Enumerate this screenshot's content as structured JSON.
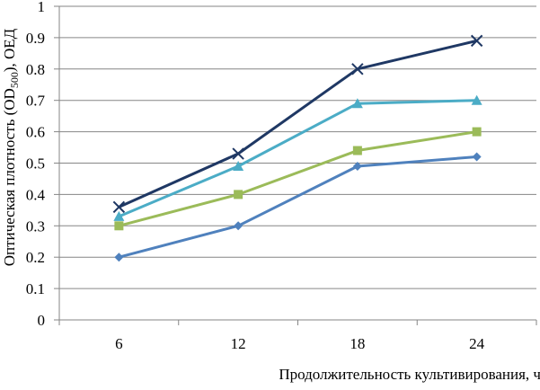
{
  "chart_data": {
    "type": "line",
    "title": "",
    "xlabel": "Продолжительность культивирования, ч",
    "ylabel": {
      "prefix": "Оптическая плотность (OD",
      "subscript": "500",
      "suffix": "), ОЕД"
    },
    "categories": [
      "6",
      "12",
      "18",
      "24"
    ],
    "ylim": [
      0,
      1
    ],
    "yticks": [
      "0",
      "0.1",
      "0.2",
      "0.3",
      "0.4",
      "0.5",
      "0.6",
      "0.7",
      "0.8",
      "0.9",
      "1"
    ],
    "grid": true,
    "legend": "none",
    "series": [
      {
        "values": [
          0.2,
          0.3,
          0.49,
          0.52
        ],
        "color": "#4f81bd",
        "marker": "diamond"
      },
      {
        "values": [
          0.3,
          0.4,
          0.54,
          0.6
        ],
        "color": "#9bbb59",
        "marker": "square"
      },
      {
        "values": [
          0.33,
          0.49,
          0.69,
          0.7
        ],
        "color": "#4bacc6",
        "marker": "triangle"
      },
      {
        "values": [
          0.36,
          0.53,
          0.8,
          0.89
        ],
        "color": "#1f3864",
        "marker": "x"
      }
    ]
  }
}
